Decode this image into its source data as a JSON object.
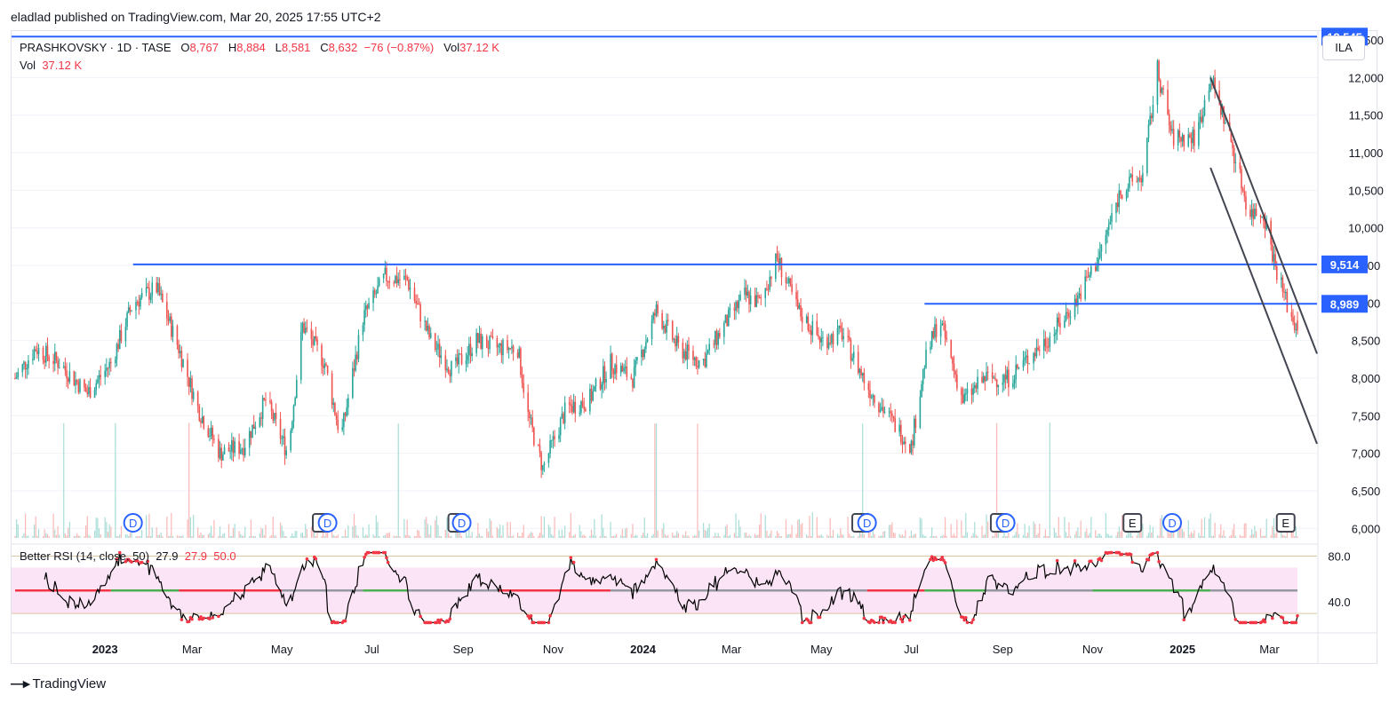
{
  "header": {
    "publisher_note": "eladlad published on TradingView.com, Mar 20, 2025 17:55 UTC+2"
  },
  "legend": {
    "symbol": "PRASHKOVSKY · 1D · TASE",
    "o_label": "O",
    "o_value": "8,767",
    "h_label": "H",
    "h_value": "8,884",
    "l_label": "L",
    "l_value": "8,581",
    "c_label": "C",
    "c_value": "8,632",
    "change": "−76 (−0.87%)",
    "vol_label": "Vol",
    "vol_value": "37.12 K",
    "vol2_label": "Vol",
    "vol2_value": "37.12 K"
  },
  "currency": "ILA",
  "rsi_legend": {
    "title": "Better RSI (14, close, 50)",
    "v1": "27.9",
    "v2": "27.9",
    "v3": "50.0"
  },
  "footer": {
    "brand": "TradingView"
  },
  "colors": {
    "up": "#26a69a",
    "down": "#ef5350",
    "level": "#2962ff",
    "channel": "#434651",
    "rsi_band": "#fce4f7",
    "rsi_red": "#f23645",
    "rsi_green": "#4caf50",
    "rsi_gray": "#9598a1"
  },
  "chart_data": {
    "type": "candlestick",
    "title": "PRASHKOVSKY · 1D · TASE",
    "price_axis": {
      "ticks": [
        "6,000",
        "6,500",
        "7,000",
        "7,500",
        "8,000",
        "8,500",
        "9,000",
        "9,500",
        "10,000",
        "10,500",
        "11,000",
        "11,500",
        "12,000",
        "12,500"
      ],
      "ylim": [
        5850,
        12560
      ],
      "labels": [
        "12,545",
        "9,514",
        "8,989"
      ]
    },
    "time_axis": {
      "ticks": [
        "2023",
        "Mar",
        "May",
        "Jul",
        "Sep",
        "Nov",
        "2024",
        "Mar",
        "May",
        "Jul",
        "Sep",
        "Nov",
        "2025",
        "Mar"
      ],
      "range": [
        "2022-11-01",
        "2025-03-20"
      ]
    },
    "price_path": [
      [
        "2022-11-01",
        8000
      ],
      [
        "2022-11-15",
        8400
      ],
      [
        "2022-12-01",
        8200
      ],
      [
        "2022-12-20",
        7800
      ],
      [
        "2023-01-05",
        8200
      ],
      [
        "2023-01-20",
        9000
      ],
      [
        "2023-02-05",
        9200
      ],
      [
        "2023-02-20",
        8400
      ],
      [
        "2023-03-05",
        7600
      ],
      [
        "2023-03-20",
        7000
      ],
      [
        "2023-04-05",
        7100
      ],
      [
        "2023-04-20",
        7700
      ],
      [
        "2023-05-05",
        7000
      ],
      [
        "2023-05-15",
        8700
      ],
      [
        "2023-05-30",
        8200
      ],
      [
        "2023-06-10",
        7200
      ],
      [
        "2023-06-25",
        8800
      ],
      [
        "2023-07-10",
        9350
      ],
      [
        "2023-07-25",
        9300
      ],
      [
        "2023-08-10",
        8500
      ],
      [
        "2023-08-25",
        8100
      ],
      [
        "2023-09-10",
        8500
      ],
      [
        "2023-09-25",
        8400
      ],
      [
        "2023-10-08",
        8400
      ],
      [
        "2023-10-15",
        7500
      ],
      [
        "2023-10-25",
        6800
      ],
      [
        "2023-11-10",
        7600
      ],
      [
        "2023-11-25",
        7700
      ],
      [
        "2023-12-10",
        8200
      ],
      [
        "2023-12-25",
        8000
      ],
      [
        "2024-01-10",
        8900
      ],
      [
        "2024-01-25",
        8400
      ],
      [
        "2024-02-10",
        8200
      ],
      [
        "2024-02-25",
        8700
      ],
      [
        "2024-03-10",
        9100
      ],
      [
        "2024-03-20",
        9000
      ],
      [
        "2024-04-01",
        9600
      ],
      [
        "2024-04-15",
        8900
      ],
      [
        "2024-05-01",
        8500
      ],
      [
        "2024-05-15",
        8600
      ],
      [
        "2024-06-01",
        7900
      ],
      [
        "2024-06-15",
        7500
      ],
      [
        "2024-07-01",
        7100
      ],
      [
        "2024-07-10",
        8200
      ],
      [
        "2024-07-20",
        8800
      ],
      [
        "2024-08-05",
        7700
      ],
      [
        "2024-08-20",
        8000
      ],
      [
        "2024-09-05",
        8000
      ],
      [
        "2024-09-20",
        8300
      ],
      [
        "2024-10-05",
        8600
      ],
      [
        "2024-10-20",
        9000
      ],
      [
        "2024-11-05",
        9600
      ],
      [
        "2024-11-20",
        10500
      ],
      [
        "2024-12-05",
        10700
      ],
      [
        "2024-12-15",
        12100
      ],
      [
        "2024-12-25",
        11200
      ],
      [
        "2025-01-10",
        11200
      ],
      [
        "2025-01-20",
        12000
      ],
      [
        "2025-02-01",
        11300
      ],
      [
        "2025-02-15",
        10200
      ],
      [
        "2025-02-25",
        10200
      ],
      [
        "2025-03-05",
        9500
      ],
      [
        "2025-03-15",
        8850
      ],
      [
        "2025-03-20",
        8632
      ]
    ],
    "last_candle": {
      "date": "2025-03-20",
      "open": 8767,
      "high": 8884,
      "low": 8581,
      "close": 8632
    },
    "volume": {
      "last": 37120
    },
    "lines": [
      {
        "type": "horizontal",
        "price": 12545
      },
      {
        "type": "horizontal",
        "price": 9514,
        "from": "2023-01-20"
      },
      {
        "type": "horizontal",
        "price": 8989,
        "from": "2024-07-10"
      },
      {
        "type": "channel-upper",
        "from": [
          "2025-01-20",
          12000
        ],
        "to": [
          "2025-03-20",
          9000
        ]
      },
      {
        "type": "channel-lower",
        "from": [
          "2025-01-20",
          10800
        ],
        "to": [
          "2025-03-20",
          7800
        ]
      }
    ],
    "events": [
      {
        "label": "D",
        "date": "2023-01-20"
      },
      {
        "label": "E",
        "date": "2023-05-28"
      },
      {
        "label": "D",
        "date": "2023-06-01"
      },
      {
        "label": "E",
        "date": "2023-08-28"
      },
      {
        "label": "D",
        "date": "2023-08-31"
      },
      {
        "label": "E",
        "date": "2024-05-28"
      },
      {
        "label": "D",
        "date": "2024-06-01"
      },
      {
        "label": "E",
        "date": "2024-08-30"
      },
      {
        "label": "D",
        "date": "2024-09-03"
      },
      {
        "label": "E",
        "date": "2024-11-28"
      },
      {
        "label": "D",
        "date": "2024-12-25"
      },
      {
        "label": "E",
        "date": "2025-03-12"
      }
    ],
    "rsi": {
      "length": 14,
      "source": "close",
      "level": 50,
      "value": 27.9,
      "ticks": [
        "80.0",
        "40.0"
      ],
      "ylim": [
        20,
        85
      ]
    }
  }
}
